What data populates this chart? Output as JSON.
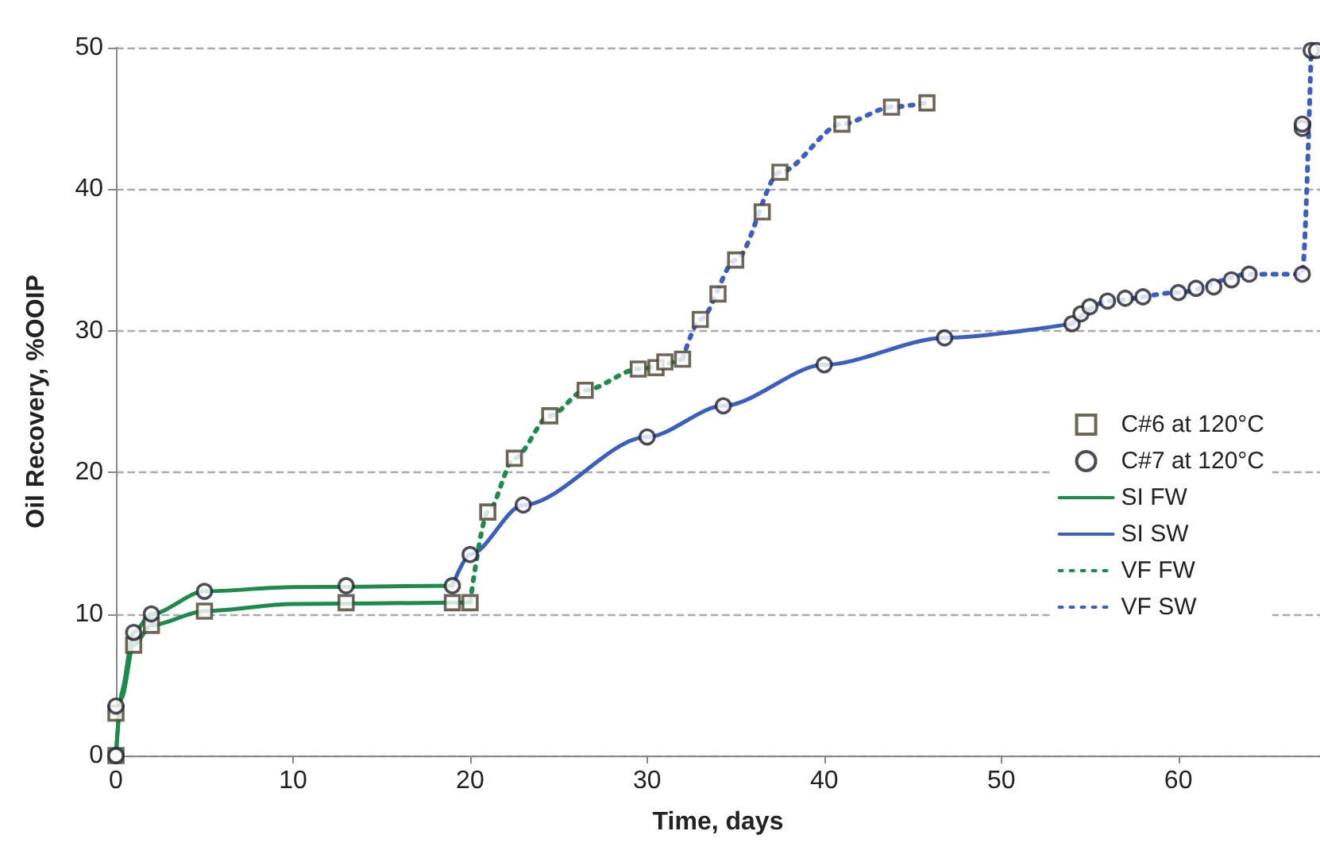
{
  "chart_data": {
    "type": "line",
    "xlabel": "Time, days",
    "ylabel": "Oil Recovery, %OOIP",
    "xlim": [
      0,
      68
    ],
    "xticks": [
      0,
      10,
      20,
      30,
      40,
      50,
      60
    ],
    "ylim": [
      0,
      50
    ],
    "yticks": [
      0,
      10,
      20,
      30,
      40,
      50
    ],
    "grid": "y",
    "legend": "right",
    "series": [
      {
        "name": "C#6 at 120°C",
        "type": "scatter",
        "marker": "square",
        "color": "#4a4030",
        "x": [
          0,
          0,
          1,
          2,
          5,
          13,
          19,
          20,
          21,
          22.5,
          24.5,
          26.5,
          29.5,
          30.5,
          31,
          32,
          33,
          34,
          35,
          36.5,
          37.5,
          41,
          43.8,
          45.8
        ],
        "values": [
          0,
          3,
          7.8,
          9.2,
          10.2,
          10.8,
          10.8,
          10.8,
          17.2,
          21,
          24,
          25.8,
          27.3,
          27.4,
          27.8,
          28,
          30.8,
          32.6,
          35,
          38.4,
          41.2,
          44.6,
          45.8,
          46.1
        ]
      },
      {
        "name": "C#7 at 120°C",
        "type": "scatter",
        "marker": "circle",
        "color": "#202030",
        "x": [
          0,
          0,
          1,
          2,
          5,
          13,
          19,
          20,
          23,
          30,
          34.3,
          40,
          46.8,
          54,
          54.5,
          55,
          56,
          57,
          58,
          60,
          61,
          62,
          63,
          64,
          67,
          67,
          67,
          67.5,
          67.8
        ],
        "values": [
          0,
          3.5,
          8.7,
          10,
          11.6,
          12,
          12,
          14.2,
          17.7,
          22.5,
          24.7,
          27.6,
          29.5,
          30.5,
          31.2,
          31.7,
          32.1,
          32.3,
          32.4,
          32.7,
          33,
          33.1,
          33.6,
          34,
          34,
          44.3,
          44.6,
          49.8,
          49.8
        ]
      },
      {
        "name": "SI FW",
        "line_style": "solid",
        "color": "#1e8a4c",
        "x": [
          0,
          0.3,
          1,
          2,
          5,
          10,
          19,
          20
        ],
        "values": [
          0,
          4,
          7.8,
          9.2,
          10.2,
          10.7,
          10.8,
          10.8
        ]
      },
      {
        "line_style": "solid",
        "color": "#1e8a4c",
        "x": [
          0,
          0.3,
          1,
          2,
          5,
          10,
          19
        ],
        "values": [
          0,
          4.5,
          8.7,
          10,
          11.6,
          11.9,
          12
        ]
      },
      {
        "name": "SI SW",
        "line_style": "solid",
        "color": "#3a5fbf",
        "x": [
          19,
          20,
          23,
          30,
          34.3,
          40,
          46.8,
          54
        ],
        "values": [
          12,
          14.2,
          17.7,
          22.5,
          24.7,
          27.6,
          29.5,
          30.5
        ]
      },
      {
        "name": "VF FW",
        "line_style": "dotted",
        "color": "#1e8a4c",
        "x": [
          20,
          21,
          22.5,
          24.5,
          26.5,
          29.5,
          32
        ],
        "values": [
          10.8,
          17.2,
          21,
          24,
          25.8,
          27.3,
          28
        ]
      },
      {
        "name": "VF SW",
        "line_style": "dotted",
        "color": "#3a5fbf",
        "x": [
          32,
          33,
          35,
          37.5,
          41,
          43.8,
          45.8
        ],
        "values": [
          28,
          30.8,
          35,
          41.2,
          44.6,
          45.8,
          46.1
        ]
      },
      {
        "line_style": "dotted",
        "color": "#3a5fbf",
        "x": [
          54,
          56,
          60,
          64,
          67,
          67.5
        ],
        "values": [
          30.5,
          32.1,
          32.7,
          34,
          34,
          49.8
        ]
      }
    ]
  }
}
